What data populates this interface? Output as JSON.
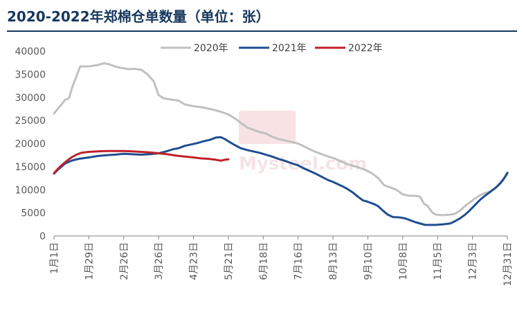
{
  "title": "2020-2022年郑棉仓单数量（单位：张）",
  "watermark": "Mysteel.com",
  "colors": {
    "s2020": "#c0c0c0",
    "s2021": "#1f4e8f",
    "s2022": "#c0202a",
    "title": "#17375e",
    "axis": "#7f7f7f"
  },
  "chart_data": {
    "type": "line",
    "title": "2020-2022年郑棉仓单数量（单位：张）",
    "xlabel": "",
    "ylabel": "",
    "ylim": [
      0,
      40000
    ],
    "yticks": [
      "0",
      "5000",
      "10000",
      "15000",
      "20000",
      "25000",
      "30000",
      "35000",
      "40000"
    ],
    "xticks": [
      "1月1日",
      "1月29日",
      "2月26日",
      "3月26日",
      "4月23日",
      "5月21日",
      "6月18日",
      "7月16日",
      "8月13日",
      "9月10日",
      "10月8日",
      "11月5日",
      "12月3日",
      "12月31日"
    ],
    "xtick_days": [
      0,
      28,
      56,
      84,
      112,
      140,
      168,
      196,
      224,
      252,
      280,
      308,
      336,
      364
    ],
    "xlim_days": [
      0,
      364
    ],
    "legend": {
      "position": "top",
      "entries": [
        "2020年",
        "2021年",
        "2022年"
      ]
    },
    "grid": false,
    "series": [
      {
        "name": "2020年",
        "points": [
          [
            0,
            26500
          ],
          [
            3,
            27500
          ],
          [
            6,
            28500
          ],
          [
            9,
            29500
          ],
          [
            12,
            29800
          ],
          [
            15,
            32500
          ],
          [
            18,
            34500
          ],
          [
            21,
            36700
          ],
          [
            28,
            36700
          ],
          [
            35,
            37000
          ],
          [
            40,
            37400
          ],
          [
            44,
            37200
          ],
          [
            48,
            36800
          ],
          [
            52,
            36500
          ],
          [
            56,
            36300
          ],
          [
            60,
            36100
          ],
          [
            64,
            36200
          ],
          [
            70,
            36000
          ],
          [
            75,
            35000
          ],
          [
            80,
            33500
          ],
          [
            84,
            30500
          ],
          [
            88,
            29800
          ],
          [
            95,
            29500
          ],
          [
            100,
            29300
          ],
          [
            105,
            28500
          ],
          [
            110,
            28200
          ],
          [
            115,
            28000
          ],
          [
            120,
            27800
          ],
          [
            125,
            27500
          ],
          [
            130,
            27200
          ],
          [
            135,
            26800
          ],
          [
            140,
            26300
          ],
          [
            145,
            25500
          ],
          [
            150,
            24500
          ],
          [
            155,
            23500
          ],
          [
            160,
            23000
          ],
          [
            165,
            22500
          ],
          [
            170,
            22200
          ],
          [
            175,
            21500
          ],
          [
            180,
            21000
          ],
          [
            185,
            20700
          ],
          [
            190,
            20400
          ],
          [
            196,
            20000
          ],
          [
            200,
            19500
          ],
          [
            205,
            18800
          ],
          [
            210,
            18200
          ],
          [
            215,
            17700
          ],
          [
            220,
            17200
          ],
          [
            225,
            16800
          ],
          [
            230,
            16200
          ],
          [
            235,
            15600
          ],
          [
            240,
            15200
          ],
          [
            245,
            14800
          ],
          [
            250,
            14300
          ],
          [
            255,
            13600
          ],
          [
            260,
            12600
          ],
          [
            265,
            11000
          ],
          [
            270,
            10500
          ],
          [
            275,
            10000
          ],
          [
            280,
            9000
          ],
          [
            285,
            8700
          ],
          [
            290,
            8700
          ],
          [
            294,
            8500
          ],
          [
            297,
            7000
          ],
          [
            300,
            6500
          ],
          [
            304,
            5000
          ],
          [
            307,
            4600
          ],
          [
            312,
            4500
          ],
          [
            318,
            4600
          ],
          [
            322,
            4800
          ],
          [
            326,
            5500
          ],
          [
            330,
            6500
          ],
          [
            335,
            7500
          ],
          [
            340,
            8500
          ],
          [
            345,
            9200
          ],
          [
            350,
            9600
          ],
          [
            355,
            10500
          ],
          [
            358,
            11500
          ],
          [
            361,
            12500
          ],
          [
            364,
            13300
          ]
        ]
      },
      {
        "name": "2021年",
        "points": [
          [
            0,
            13500
          ],
          [
            3,
            14300
          ],
          [
            6,
            15000
          ],
          [
            9,
            15700
          ],
          [
            14,
            16300
          ],
          [
            20,
            16700
          ],
          [
            28,
            17000
          ],
          [
            35,
            17300
          ],
          [
            42,
            17500
          ],
          [
            49,
            17600
          ],
          [
            56,
            17800
          ],
          [
            63,
            17700
          ],
          [
            70,
            17600
          ],
          [
            77,
            17700
          ],
          [
            84,
            17900
          ],
          [
            90,
            18300
          ],
          [
            96,
            18800
          ],
          [
            100,
            19000
          ],
          [
            105,
            19500
          ],
          [
            110,
            19800
          ],
          [
            115,
            20100
          ],
          [
            120,
            20500
          ],
          [
            125,
            20800
          ],
          [
            130,
            21300
          ],
          [
            134,
            21400
          ],
          [
            137,
            21000
          ],
          [
            140,
            20500
          ],
          [
            145,
            19700
          ],
          [
            150,
            19000
          ],
          [
            155,
            18600
          ],
          [
            160,
            18300
          ],
          [
            165,
            18000
          ],
          [
            170,
            17600
          ],
          [
            175,
            17200
          ],
          [
            180,
            16700
          ],
          [
            185,
            16300
          ],
          [
            190,
            15800
          ],
          [
            196,
            15300
          ],
          [
            200,
            14700
          ],
          [
            205,
            14100
          ],
          [
            210,
            13500
          ],
          [
            215,
            12800
          ],
          [
            220,
            12100
          ],
          [
            224,
            11700
          ],
          [
            228,
            11200
          ],
          [
            232,
            10700
          ],
          [
            236,
            10100
          ],
          [
            240,
            9400
          ],
          [
            244,
            8500
          ],
          [
            248,
            7700
          ],
          [
            252,
            7400
          ],
          [
            256,
            7000
          ],
          [
            260,
            6500
          ],
          [
            264,
            5500
          ],
          [
            268,
            4600
          ],
          [
            272,
            4100
          ],
          [
            278,
            4000
          ],
          [
            282,
            3800
          ],
          [
            286,
            3400
          ],
          [
            290,
            3000
          ],
          [
            294,
            2700
          ],
          [
            298,
            2400
          ],
          [
            302,
            2400
          ],
          [
            306,
            2400
          ],
          [
            312,
            2500
          ],
          [
            318,
            2700
          ],
          [
            322,
            3200
          ],
          [
            326,
            3800
          ],
          [
            330,
            4600
          ],
          [
            334,
            5600
          ],
          [
            338,
            6700
          ],
          [
            342,
            7800
          ],
          [
            346,
            8700
          ],
          [
            350,
            9500
          ],
          [
            354,
            10300
          ],
          [
            358,
            11300
          ],
          [
            361,
            12300
          ],
          [
            364,
            13700
          ]
        ]
      },
      {
        "name": "2022年",
        "points": [
          [
            0,
            13600
          ],
          [
            3,
            14500
          ],
          [
            6,
            15300
          ],
          [
            10,
            16200
          ],
          [
            14,
            17000
          ],
          [
            18,
            17600
          ],
          [
            22,
            18000
          ],
          [
            28,
            18200
          ],
          [
            35,
            18300
          ],
          [
            42,
            18400
          ],
          [
            49,
            18400
          ],
          [
            56,
            18400
          ],
          [
            63,
            18300
          ],
          [
            70,
            18200
          ],
          [
            77,
            18100
          ],
          [
            84,
            17900
          ],
          [
            91,
            17700
          ],
          [
            98,
            17400
          ],
          [
            105,
            17200
          ],
          [
            112,
            17000
          ],
          [
            118,
            16800
          ],
          [
            124,
            16700
          ],
          [
            130,
            16500
          ],
          [
            134,
            16300
          ],
          [
            137,
            16500
          ],
          [
            140,
            16600
          ]
        ]
      }
    ]
  }
}
